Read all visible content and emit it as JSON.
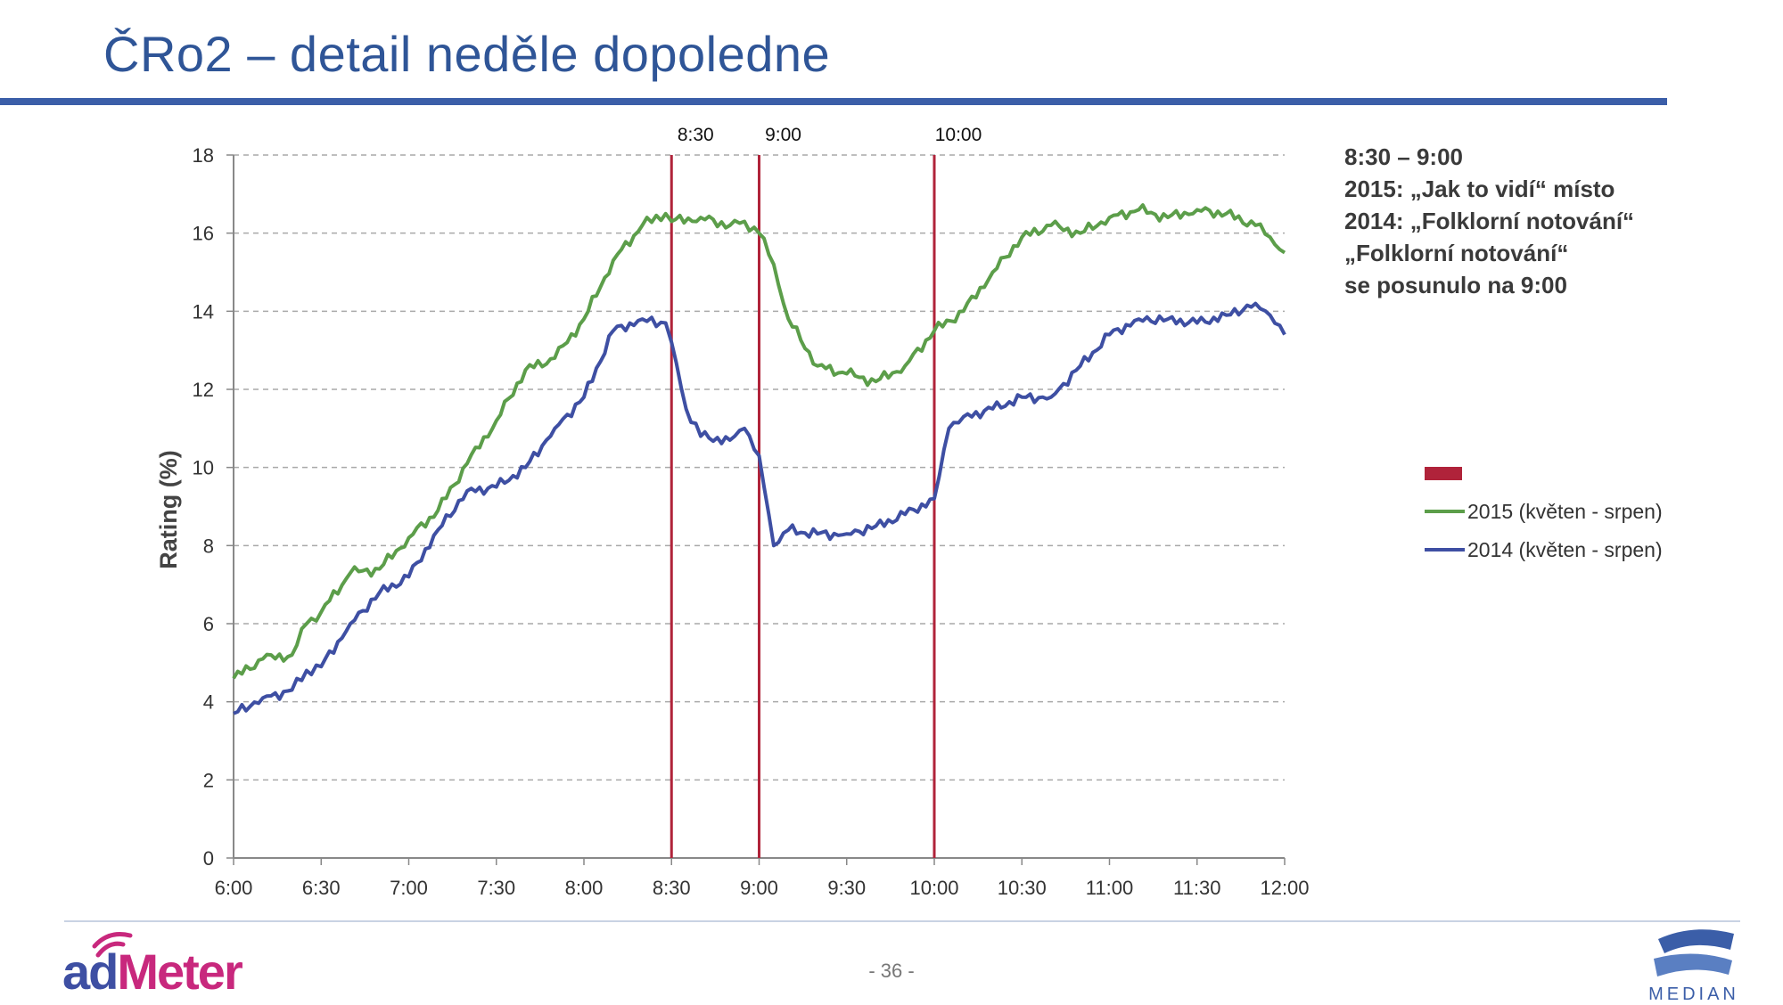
{
  "slide": {
    "title": "ČRo2 – detail neděle dopoledne",
    "page_number": "- 36 -",
    "annotation_lines": [
      "8:30 – 9:00",
      "2015: „Jak to vidí“ místo",
      "2014: „Folklorní notování“",
      "„Folklorní notování“",
      "se posunulo na 9:00"
    ],
    "logo_left_text": "adMeter",
    "logo_right_text": "MEDIAN"
  },
  "colors": {
    "title": "#2f5597",
    "series_2015": "#5c9e4a",
    "series_2014": "#3e4fa3",
    "markers": "#b0233a"
  },
  "chart_data": {
    "type": "line",
    "ylabel": "Rating (%)",
    "xlabel": "",
    "ylim": [
      0,
      18
    ],
    "yticks": [
      0,
      2,
      4,
      6,
      8,
      10,
      12,
      14,
      16,
      18
    ],
    "xlim_minutes": [
      0,
      360
    ],
    "x_categories": [
      "6:00",
      "6:30",
      "7:00",
      "7:30",
      "8:00",
      "8:30",
      "9:00",
      "9:30",
      "10:00",
      "10:30",
      "11:00",
      "11:30",
      "12:00"
    ],
    "grid": "horizontal dashed",
    "legend": "right",
    "markers": [
      {
        "label": "8:30",
        "x": "8:30"
      },
      {
        "label": "9:00",
        "x": "9:00"
      },
      {
        "label": "10:00",
        "x": "10:00"
      }
    ],
    "legend_marker_label": "",
    "series": [
      {
        "name": "2015 (květen - srpen)",
        "x": [
          "6:00",
          "6:10",
          "6:20",
          "6:25",
          "6:30",
          "6:40",
          "6:50",
          "7:00",
          "7:10",
          "7:20",
          "7:30",
          "7:40",
          "7:50",
          "8:00",
          "8:10",
          "8:20",
          "8:28",
          "8:30",
          "8:40",
          "8:50",
          "8:55",
          "9:00",
          "9:05",
          "9:10",
          "9:20",
          "9:30",
          "9:40",
          "9:50",
          "10:00",
          "10:10",
          "10:20",
          "10:30",
          "10:40",
          "10:50",
          "11:00",
          "11:10",
          "11:20",
          "11:30",
          "11:40",
          "11:50",
          "11:55",
          "12:00"
        ],
        "values": [
          4.6,
          5.1,
          5.2,
          6.0,
          6.3,
          7.3,
          7.4,
          8.2,
          8.9,
          10.1,
          11.2,
          12.5,
          12.8,
          13.8,
          15.3,
          16.2,
          16.5,
          16.3,
          16.4,
          16.2,
          16.3,
          16.0,
          15.2,
          13.8,
          12.6,
          12.4,
          12.2,
          12.6,
          13.5,
          14.0,
          15.0,
          15.9,
          16.2,
          16.0,
          16.4,
          16.6,
          16.4,
          16.6,
          16.5,
          16.2,
          15.9,
          15.5
        ]
      },
      {
        "name": "2014 (květen - srpen)",
        "x": [
          "6:00",
          "6:10",
          "6:20",
          "6:25",
          "6:30",
          "6:40",
          "6:50",
          "7:00",
          "7:10",
          "7:20",
          "7:30",
          "7:40",
          "7:50",
          "8:00",
          "8:10",
          "8:20",
          "8:28",
          "8:30",
          "8:35",
          "8:40",
          "8:50",
          "8:55",
          "9:00",
          "9:05",
          "9:10",
          "9:20",
          "9:30",
          "9:40",
          "9:50",
          "10:00",
          "10:05",
          "10:10",
          "10:20",
          "10:30",
          "10:40",
          "10:50",
          "11:00",
          "11:10",
          "11:20",
          "11:30",
          "11:40",
          "11:50",
          "11:55",
          "12:00"
        ],
        "values": [
          3.7,
          4.1,
          4.3,
          4.8,
          4.9,
          6.0,
          6.8,
          7.2,
          8.4,
          9.4,
          9.5,
          10.0,
          11.0,
          11.8,
          13.5,
          13.8,
          13.7,
          13.2,
          11.5,
          10.8,
          10.7,
          11.0,
          10.3,
          8.0,
          8.4,
          8.3,
          8.3,
          8.5,
          8.8,
          9.2,
          11.0,
          11.3,
          11.5,
          11.8,
          11.8,
          12.6,
          13.4,
          13.8,
          13.8,
          13.7,
          13.9,
          14.2,
          13.9,
          13.4
        ]
      }
    ]
  }
}
